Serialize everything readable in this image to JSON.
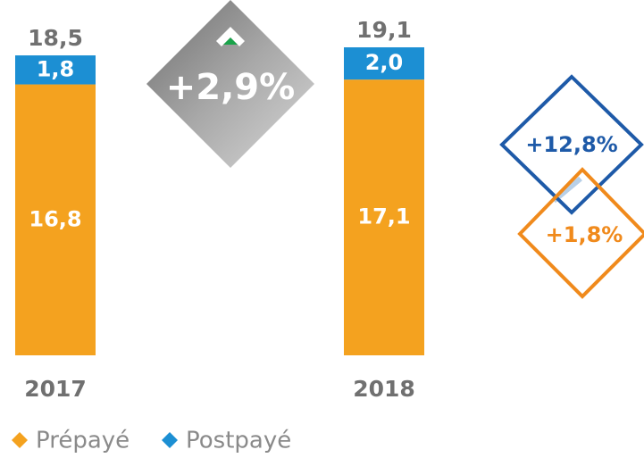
{
  "chart_data": {
    "type": "bar",
    "stacked": true,
    "categories": [
      "2017",
      "2018"
    ],
    "series": [
      {
        "name": "Prépayé",
        "color": "#f4a21f",
        "values": [
          16.8,
          17.1
        ],
        "value_labels": [
          "16,8",
          "17,1"
        ]
      },
      {
        "name": "Postpayé",
        "color": "#1c8fd3",
        "values": [
          1.8,
          2.0
        ],
        "value_labels": [
          "1,8",
          "2,0"
        ]
      }
    ],
    "totals": [
      18.5,
      19.1
    ],
    "total_labels": [
      "18,5",
      "19,1"
    ],
    "annotations": [
      "+2,9%",
      "+12,8%",
      "+1,8%"
    ]
  }
}
